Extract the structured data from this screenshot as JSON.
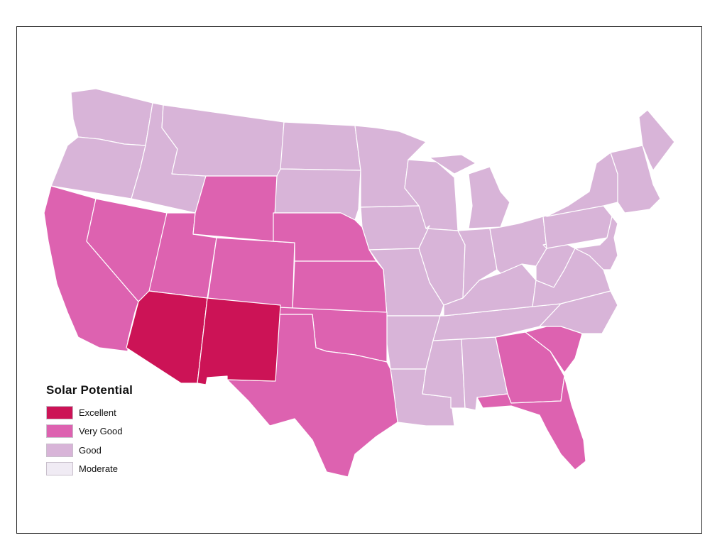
{
  "legend": {
    "title": "Solar Potential",
    "classes": [
      {
        "key": "excellent",
        "label": "Excellent",
        "color": "#cc1356"
      },
      {
        "key": "very_good",
        "label": "Very Good",
        "color": "#dd62b0"
      },
      {
        "key": "good",
        "label": "Good",
        "color": "#d8b4d8"
      },
      {
        "key": "moderate",
        "label": "Moderate",
        "color": "#f0ebf4"
      }
    ]
  },
  "regions": [
    {
      "name": "washington",
      "category": "good"
    },
    {
      "name": "oregon",
      "category": "good"
    },
    {
      "name": "idaho",
      "category": "good"
    },
    {
      "name": "montana",
      "category": "good"
    },
    {
      "name": "north-dakota",
      "category": "good"
    },
    {
      "name": "south-dakota",
      "category": "good"
    },
    {
      "name": "minnesota",
      "category": "good"
    },
    {
      "name": "iowa",
      "category": "good"
    },
    {
      "name": "wisconsin",
      "category": "good"
    },
    {
      "name": "michigan",
      "category": "good"
    },
    {
      "name": "illinois",
      "category": "good"
    },
    {
      "name": "missouri",
      "category": "good"
    },
    {
      "name": "arkansas",
      "category": "good"
    },
    {
      "name": "louisiana",
      "category": "good"
    },
    {
      "name": "mississippi",
      "category": "good"
    },
    {
      "name": "alabama",
      "category": "good"
    },
    {
      "name": "tennessee",
      "category": "good"
    },
    {
      "name": "kentucky",
      "category": "good"
    },
    {
      "name": "indiana",
      "category": "good"
    },
    {
      "name": "ohio",
      "category": "good"
    },
    {
      "name": "west-virginia",
      "category": "good"
    },
    {
      "name": "virginia",
      "category": "good"
    },
    {
      "name": "north-carolina",
      "category": "good"
    },
    {
      "name": "pennsylvania",
      "category": "good"
    },
    {
      "name": "new-york",
      "category": "good"
    },
    {
      "name": "new-england",
      "category": "good"
    },
    {
      "name": "maine",
      "category": "good"
    },
    {
      "name": "mid-atlantic",
      "category": "good"
    },
    {
      "name": "california",
      "category": "very_good"
    },
    {
      "name": "nevada",
      "category": "very_good"
    },
    {
      "name": "utah",
      "category": "very_good"
    },
    {
      "name": "wyoming",
      "category": "very_good"
    },
    {
      "name": "colorado",
      "category": "very_good"
    },
    {
      "name": "nebraska",
      "category": "very_good"
    },
    {
      "name": "kansas",
      "category": "very_good"
    },
    {
      "name": "oklahoma",
      "category": "very_good"
    },
    {
      "name": "texas",
      "category": "very_good"
    },
    {
      "name": "georgia",
      "category": "very_good"
    },
    {
      "name": "south-carolina",
      "category": "very_good"
    },
    {
      "name": "florida",
      "category": "very_good"
    },
    {
      "name": "arizona",
      "category": "excellent"
    },
    {
      "name": "new-mexico",
      "category": "excellent"
    }
  ]
}
